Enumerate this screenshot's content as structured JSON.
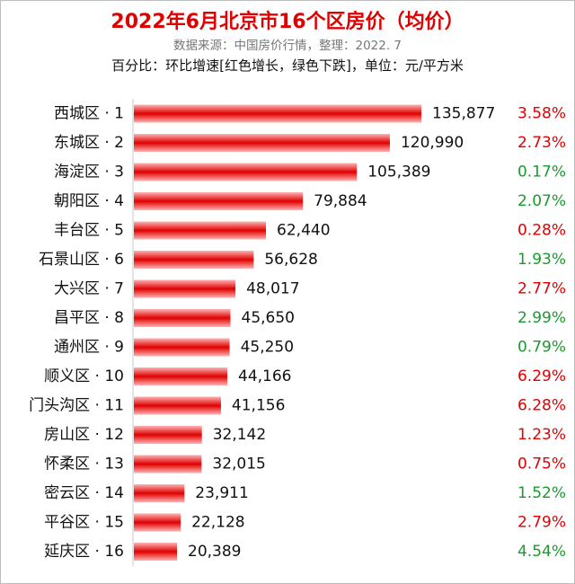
{
  "header": {
    "title": "2022年6月北京市16个区房价（均价）",
    "source": "数据来源：中国房价行情，整理：2022. 7",
    "note": "百分比：环比增速[红色增长，绿色下跌]，单位：元/平方米"
  },
  "colors": {
    "title": "#e00000",
    "bar": "#e00000",
    "increase": "#e00000",
    "decrease": "#1a9a2e"
  },
  "chart_data": {
    "type": "bar",
    "orientation": "horizontal",
    "title": "2022年6月北京市16个区房价（均价）",
    "unit": "元/平方米",
    "categories": [
      "西城区 · 1",
      "东城区 · 2",
      "海淀区 · 3",
      "朝阳区 · 4",
      "丰台区 · 5",
      "石景山区 · 6",
      "大兴区 · 7",
      "昌平区 · 8",
      "通州区 · 9",
      "顺义区 · 10",
      "门头沟区 · 11",
      "房山区 · 12",
      "怀柔区 · 13",
      "密云区 · 14",
      "平谷区 · 15",
      "延庆区 · 16"
    ],
    "values": [
      135877,
      120990,
      105389,
      79884,
      62440,
      56628,
      48017,
      45650,
      45250,
      44166,
      41156,
      32142,
      32015,
      23911,
      22128,
      20389
    ],
    "value_labels": [
      "135,877",
      "120,990",
      "105,389",
      "79,884",
      "62,440",
      "56,628",
      "48,017",
      "45,650",
      "45,250",
      "44,166",
      "41,156",
      "32,142",
      "32,015",
      "23,911",
      "22,128",
      "20,389"
    ],
    "mom_change": [
      "3.58%",
      "2.73%",
      "0.17%",
      "2.07%",
      "0.28%",
      "1.93%",
      "2.77%",
      "2.99%",
      "0.79%",
      "6.29%",
      "6.28%",
      "1.23%",
      "0.75%",
      "1.52%",
      "2.79%",
      "4.54%"
    ],
    "mom_direction": [
      "up",
      "up",
      "down",
      "down",
      "up",
      "down",
      "up",
      "down",
      "down",
      "up",
      "up",
      "up",
      "up",
      "down",
      "up",
      "down"
    ],
    "grid": false,
    "legend": "none"
  }
}
